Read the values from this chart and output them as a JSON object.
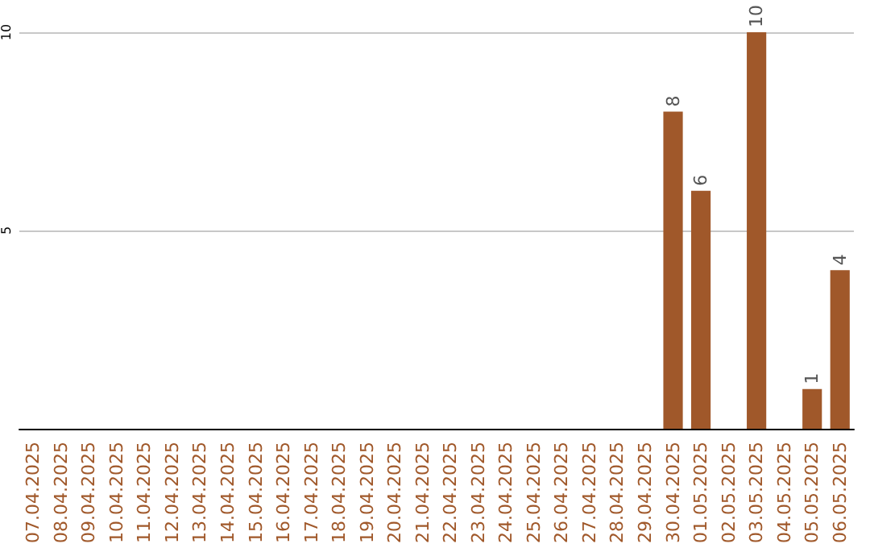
{
  "chart_data": {
    "type": "bar",
    "categories": [
      "07.04.2025",
      "08.04.2025",
      "09.04.2025",
      "10.04.2025",
      "11.04.2025",
      "12.04.2025",
      "13.04.2025",
      "14.04.2025",
      "15.04.2025",
      "16.04.2025",
      "17.04.2025",
      "18.04.2025",
      "19.04.2025",
      "20.04.2025",
      "21.04.2025",
      "22.04.2025",
      "23.04.2025",
      "24.04.2025",
      "25.04.2025",
      "26.04.2025",
      "27.04.2025",
      "28.04.2025",
      "29.04.2025",
      "30.04.2025",
      "01.05.2025",
      "02.05.2025",
      "03.05.2025",
      "04.05.2025",
      "05.05.2025",
      "06.05.2025"
    ],
    "values": [
      0,
      0,
      0,
      0,
      0,
      0,
      0,
      0,
      0,
      0,
      0,
      0,
      0,
      0,
      0,
      0,
      0,
      0,
      0,
      0,
      0,
      0,
      0,
      8,
      6,
      0,
      10,
      0,
      1,
      4
    ],
    "value_labels": [
      null,
      null,
      null,
      null,
      null,
      null,
      null,
      null,
      null,
      null,
      null,
      null,
      null,
      null,
      null,
      null,
      null,
      null,
      null,
      null,
      null,
      null,
      null,
      "8",
      "6",
      null,
      "10",
      null,
      "1",
      "4"
    ],
    "color": "#a0582a",
    "ylim": [
      0,
      10
    ],
    "yticks": [
      5,
      10
    ],
    "grid": "y"
  }
}
